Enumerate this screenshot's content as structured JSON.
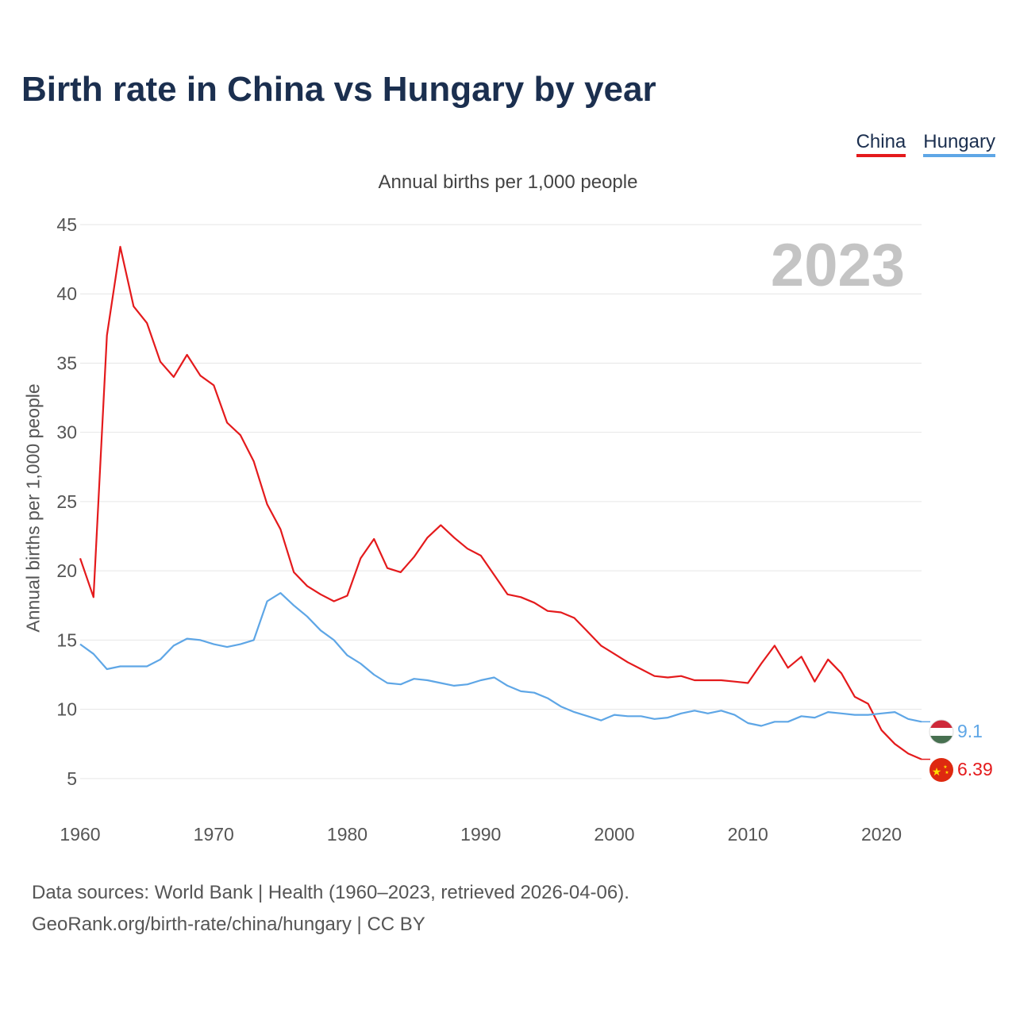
{
  "chart_data": {
    "type": "line",
    "title": "Birth rate in China vs Hungary by year",
    "subtitle": "Annual births per 1,000 people",
    "ylabel": "Annual births per 1,000 people",
    "xlabel": "",
    "xlim": [
      1960,
      2023
    ],
    "ylim": [
      3.5,
      45
    ],
    "y_ticks": [
      5,
      10,
      15,
      20,
      25,
      30,
      35,
      40,
      45
    ],
    "x_ticks": [
      1960,
      1970,
      1980,
      1990,
      2000,
      2010,
      2020
    ],
    "year_label": "2023",
    "x": [
      1960,
      1961,
      1962,
      1963,
      1964,
      1965,
      1966,
      1967,
      1968,
      1969,
      1970,
      1971,
      1972,
      1973,
      1974,
      1975,
      1976,
      1977,
      1978,
      1979,
      1980,
      1981,
      1982,
      1983,
      1984,
      1985,
      1986,
      1987,
      1988,
      1989,
      1990,
      1991,
      1992,
      1993,
      1994,
      1995,
      1996,
      1997,
      1998,
      1999,
      2000,
      2001,
      2002,
      2003,
      2004,
      2005,
      2006,
      2007,
      2008,
      2009,
      2010,
      2011,
      2012,
      2013,
      2014,
      2015,
      2016,
      2017,
      2018,
      2019,
      2020,
      2021,
      2022,
      2023
    ],
    "series": [
      {
        "name": "China",
        "color": "#e41a1c",
        "end_label": "6.39",
        "flag": "china-flag",
        "values": [
          20.9,
          18.1,
          37.0,
          43.4,
          39.1,
          37.9,
          35.1,
          34.0,
          35.6,
          34.1,
          33.4,
          30.7,
          29.8,
          27.9,
          24.8,
          23.0,
          19.9,
          18.9,
          18.3,
          17.8,
          18.2,
          20.9,
          22.3,
          20.2,
          19.9,
          21.0,
          22.4,
          23.3,
          22.4,
          21.6,
          21.1,
          19.7,
          18.3,
          18.1,
          17.7,
          17.1,
          17.0,
          16.6,
          15.6,
          14.6,
          14.0,
          13.4,
          12.9,
          12.4,
          12.3,
          12.4,
          12.1,
          12.1,
          12.1,
          12.0,
          11.9,
          13.3,
          14.6,
          13.0,
          13.8,
          12.0,
          13.6,
          12.6,
          10.9,
          10.4,
          8.5,
          7.5,
          6.8,
          6.39
        ]
      },
      {
        "name": "Hungary",
        "color": "#5ea6e6",
        "end_label": "9.1",
        "flag": "hungary-flag",
        "values": [
          14.7,
          14.0,
          12.9,
          13.1,
          13.1,
          13.1,
          13.6,
          14.6,
          15.1,
          15.0,
          14.7,
          14.5,
          14.7,
          15.0,
          17.8,
          18.4,
          17.5,
          16.7,
          15.7,
          15.0,
          13.9,
          13.3,
          12.5,
          11.9,
          11.8,
          12.2,
          12.1,
          11.9,
          11.7,
          11.8,
          12.1,
          12.3,
          11.7,
          11.3,
          11.2,
          10.8,
          10.2,
          9.8,
          9.5,
          9.2,
          9.6,
          9.5,
          9.5,
          9.3,
          9.4,
          9.7,
          9.9,
          9.7,
          9.9,
          9.6,
          9.0,
          8.8,
          9.1,
          9.1,
          9.5,
          9.4,
          9.8,
          9.7,
          9.6,
          9.6,
          9.7,
          9.8,
          9.3,
          9.1
        ]
      }
    ]
  },
  "footer": {
    "line1": "Data sources: World Bank | Health (1960–2023, retrieved 2026-04-06).",
    "line2": "GeoRank.org/birth-rate/china/hungary | CC BY"
  }
}
